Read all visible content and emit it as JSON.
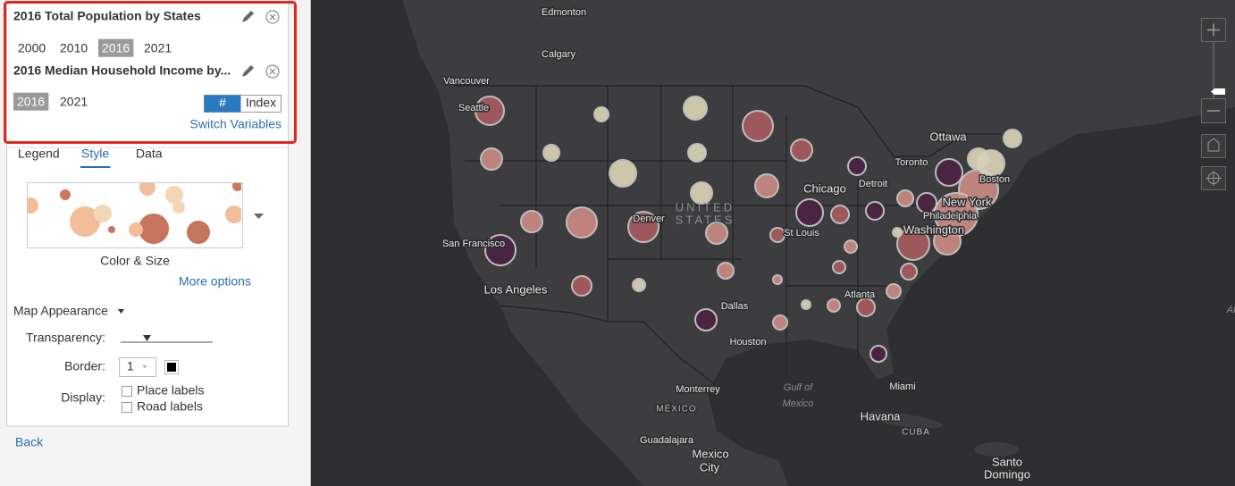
{
  "layers": [
    {
      "title": "2016 Total Population by States",
      "years": [
        "2000",
        "2010",
        "2016",
        "2021"
      ],
      "selected": 2
    },
    {
      "title": "2016 Median Household Income by...",
      "years": [
        "2016",
        "2021"
      ],
      "selected": 0,
      "modes": [
        "#",
        "Index"
      ],
      "active_mode": 0
    }
  ],
  "switch_link": "Switch Variables",
  "tabs": {
    "items": [
      "Legend",
      "Style",
      "Data"
    ],
    "active": 1
  },
  "style": {
    "name": "Color & Size",
    "more": "More options"
  },
  "map_appearance": {
    "title": "Map Appearance",
    "transparency": "Transparency:",
    "border": "Border:",
    "border_width": "1",
    "display": "Display:",
    "options": [
      "Place labels",
      "Road labels"
    ]
  },
  "back": "Back",
  "map": {
    "country_label": [
      "UNITED",
      "STATES"
    ],
    "labels": [
      {
        "lines": [
          "Edmonton"
        ]
      },
      {
        "lines": [
          "Calgary"
        ]
      },
      {
        "lines": [
          "Vancouver"
        ]
      },
      {
        "lines": [
          "Seattle"
        ]
      },
      {
        "lines": [
          "Ottawa"
        ]
      },
      {
        "lines": [
          "Toronto"
        ]
      },
      {
        "lines": [
          "Detroit"
        ]
      },
      {
        "lines": [
          "Chicago"
        ]
      },
      {
        "lines": [
          "Boston"
        ]
      },
      {
        "lines": [
          "New York"
        ]
      },
      {
        "lines": [
          "Philadelphia"
        ]
      },
      {
        "lines": [
          "Washington"
        ]
      },
      {
        "lines": [
          "St Louis"
        ]
      },
      {
        "lines": [
          "Denver"
        ]
      },
      {
        "lines": [
          "San Francisco"
        ]
      },
      {
        "lines": [
          "Los Angeles"
        ]
      },
      {
        "lines": [
          "Dallas"
        ]
      },
      {
        "lines": [
          "Atlanta"
        ]
      },
      {
        "lines": [
          "Houston"
        ]
      },
      {
        "lines": [
          "Monterrey"
        ]
      },
      {
        "lines": [
          "MÉXICO"
        ]
      },
      {
        "lines": [
          "Gulf of",
          "Mexico"
        ]
      },
      {
        "lines": [
          "Miami"
        ]
      },
      {
        "lines": [
          "Havana"
        ]
      },
      {
        "lines": [
          "CUBA"
        ]
      },
      {
        "lines": [
          "Guadalajara"
        ]
      },
      {
        "lines": [
          "Mexico",
          "City"
        ]
      },
      {
        "lines": [
          "Santo",
          "Domingo"
        ]
      },
      {
        "lines": [
          "At"
        ]
      }
    ]
  }
}
